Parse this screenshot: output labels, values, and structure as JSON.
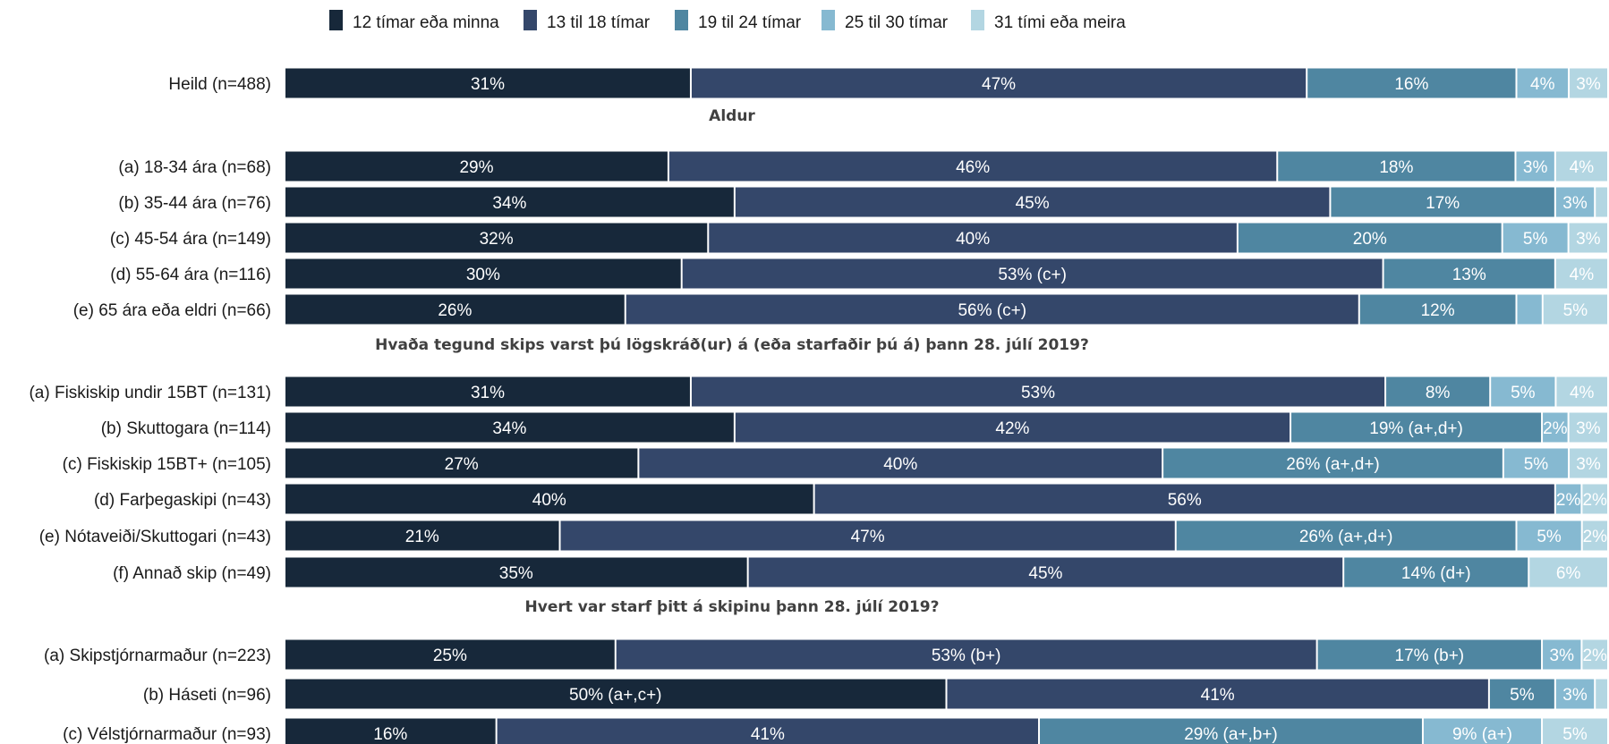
{
  "chart_data": {
    "type": "bar",
    "orientation": "horizontal",
    "stacked": true,
    "unit": "%",
    "legend_placement": "top",
    "grid": false,
    "legend": [
      {
        "name": "12 tímar eða minna",
        "color": "#17283a"
      },
      {
        "name": "13 til 18 tímar",
        "color": "#34476a"
      },
      {
        "name": "19 til 24 tímar",
        "color": "#4f86a1"
      },
      {
        "name": "25 til 30 tímar",
        "color": "#86b9d1"
      },
      {
        "name": "31 tími eða meira",
        "color": "#b3d6e2"
      }
    ],
    "groups": [
      {
        "title": "",
        "rows": [
          {
            "label": "Heild (n=488)",
            "values": [
              31,
              47,
              16,
              4,
              3
            ],
            "labels": [
              "31%",
              "47%",
              "16%",
              "4%",
              "3%"
            ]
          }
        ]
      },
      {
        "title": "Aldur",
        "rows": [
          {
            "label": "(a) 18-34 ára (n=68)",
            "values": [
              29,
              46,
              18,
              3,
              4
            ],
            "labels": [
              "29%",
              "46%",
              "18%",
              "3%",
              "4%"
            ]
          },
          {
            "label": "(b) 35-44 ára (n=76)",
            "values": [
              34,
              45,
              17,
              3,
              1
            ],
            "labels": [
              "34%",
              "45%",
              "17%",
              "3%",
              ""
            ]
          },
          {
            "label": "(c) 45-54 ára (n=149)",
            "values": [
              32,
              40,
              20,
              5,
              3
            ],
            "labels": [
              "32%",
              "40%",
              "20%",
              "5%",
              "3%"
            ]
          },
          {
            "label": "(d) 55-64 ára (n=116)",
            "values": [
              30,
              53,
              13,
              0,
              4
            ],
            "labels": [
              "30%",
              "53% (c+)",
              "13%",
              "",
              "4%"
            ]
          },
          {
            "label": "(e) 65 ára eða eldri (n=66)",
            "values": [
              26,
              56,
              12,
              2,
              5
            ],
            "labels": [
              "26%",
              "56% (c+)",
              "12%",
              "",
              "5%"
            ]
          }
        ]
      },
      {
        "title": "Hvaða tegund skips varst þú lögskráð(ur) á (eða starfaðir þú á) þann 28. júlí 2019?",
        "rows": [
          {
            "label": "(a) Fiskiskip undir 15BT (n=131)",
            "values": [
              31,
              53,
              8,
              5,
              4
            ],
            "labels": [
              "31%",
              "53%",
              "8%",
              "5%",
              "4%"
            ]
          },
          {
            "label": "(b) Skuttogara (n=114)",
            "values": [
              34,
              42,
              19,
              2,
              3
            ],
            "labels": [
              "34%",
              "42%",
              "19% (a+,d+)",
              "2%",
              "3%"
            ]
          },
          {
            "label": "(c) Fiskiskip 15BT+ (n=105)",
            "values": [
              27,
              40,
              26,
              5,
              3
            ],
            "labels": [
              "27%",
              "40%",
              "26% (a+,d+)",
              "5%",
              "3%"
            ]
          },
          {
            "label": "(d) Farþegaskipi (n=43)",
            "values": [
              40,
              56,
              0,
              2,
              2
            ],
            "labels": [
              "40%",
              "56%",
              "",
              "2%",
              "2%"
            ]
          },
          {
            "label": "(e) Nótaveiði/Skuttogari (n=43)",
            "values": [
              21,
              47,
              26,
              5,
              2
            ],
            "labels": [
              "21%",
              "47%",
              "26% (a+,d+)",
              "5%",
              "2%"
            ]
          },
          {
            "label": "(f) Annað skip (n=49)",
            "values": [
              35,
              45,
              14,
              0,
              6
            ],
            "labels": [
              "35%",
              "45%",
              "14% (d+)",
              "",
              "6%"
            ]
          }
        ]
      },
      {
        "title": "Hvert var starf þitt á skipinu þann 28. júlí 2019?",
        "rows": [
          {
            "label": "(a) Skipstjórnarmaður (n=223)",
            "values": [
              25,
              53,
              17,
              3,
              2
            ],
            "labels": [
              "25%",
              "53% (b+)",
              "17% (b+)",
              "3%",
              "2%"
            ]
          },
          {
            "label": "(b) Háseti (n=96)",
            "values": [
              50,
              41,
              5,
              3,
              1
            ],
            "labels": [
              "50% (a+,c+)",
              "41%",
              "5%",
              "3%",
              ""
            ]
          },
          {
            "label": "(c) Vélstjórnarmaður (n=93)",
            "values": [
              16,
              41,
              29,
              9,
              5
            ],
            "labels": [
              "16%",
              "41%",
              "29% (a+,b+)",
              "9% (a+)",
              "5%"
            ]
          }
        ]
      }
    ]
  }
}
